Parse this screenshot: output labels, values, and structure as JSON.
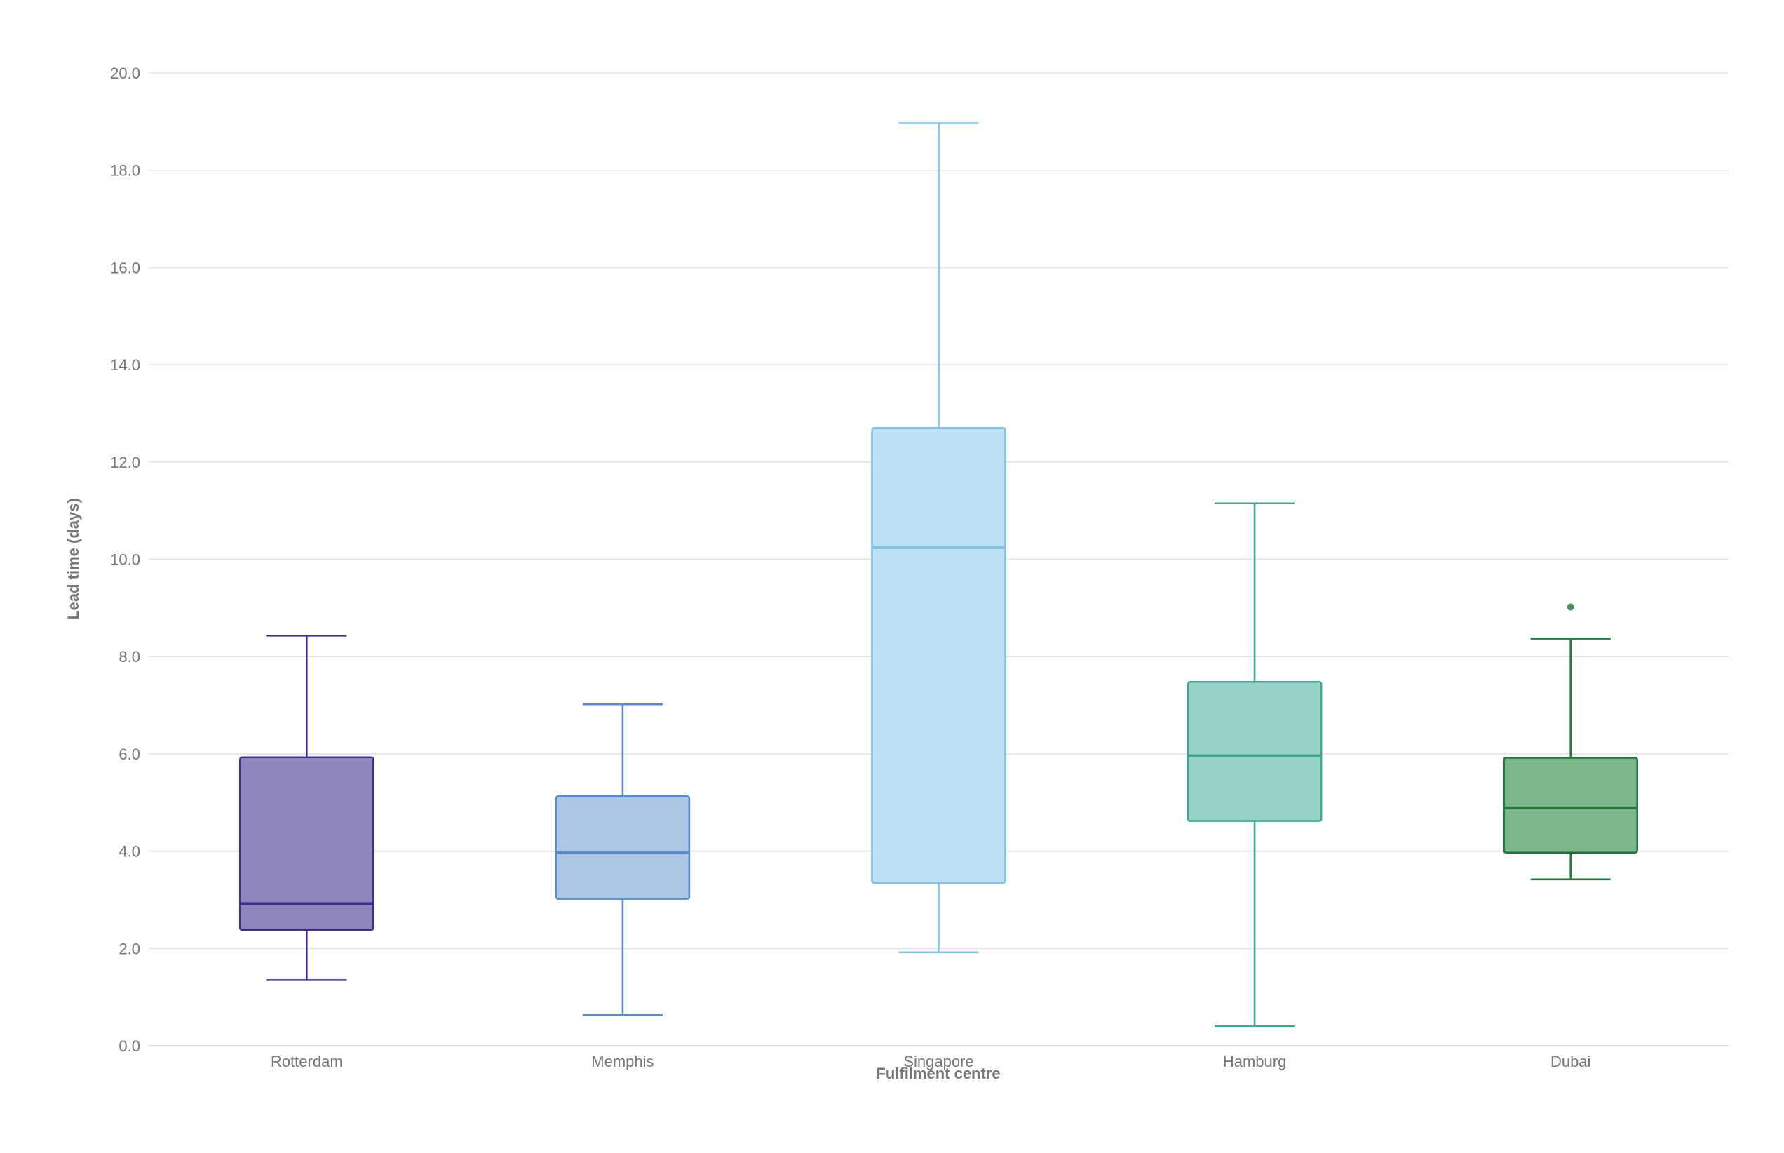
{
  "chart_data": {
    "type": "boxplot",
    "xlabel": "Fulfilment centre",
    "ylabel": "Lead time (days)",
    "ylim": [
      0,
      20
    ],
    "yticks": [
      "0.0",
      "2.0",
      "4.0",
      "6.0",
      "8.0",
      "10.0",
      "12.0",
      "14.0",
      "16.0",
      "18.0",
      "20.0"
    ],
    "grid": true,
    "categories": [
      "Rotterdam",
      "Memphis",
      "Singapore",
      "Hamburg",
      "Dubai"
    ],
    "series": [
      {
        "category": "Rotterdam",
        "min": 1.35,
        "q1": 2.38,
        "median": 2.92,
        "q3": 5.93,
        "max": 8.43,
        "outliers": [],
        "color": "#3d2f8f",
        "fill": "#8f86be"
      },
      {
        "category": "Memphis",
        "min": 0.63,
        "q1": 3.02,
        "median": 3.97,
        "q3": 5.13,
        "max": 7.02,
        "outliers": [],
        "color": "#5a8cc6",
        "fill": "#adc6e6"
      },
      {
        "category": "Singapore",
        "min": 1.92,
        "q1": 3.35,
        "median": 10.24,
        "q3": 12.7,
        "max": 18.97,
        "outliers": [],
        "color": "#7fc4e6",
        "fill": "#bde2f4"
      },
      {
        "category": "Hamburg",
        "min": 0.4,
        "q1": 4.62,
        "median": 5.96,
        "q3": 7.48,
        "max": 11.15,
        "outliers": [],
        "color": "#3fa68f",
        "fill": "#98d1c5"
      },
      {
        "category": "Dubai",
        "min": 3.42,
        "q1": 3.97,
        "median": 4.89,
        "q3": 5.92,
        "max": 8.37,
        "outliers": [
          9.02
        ],
        "color": "#1f7a3e",
        "fill": "#7db58c"
      }
    ]
  }
}
